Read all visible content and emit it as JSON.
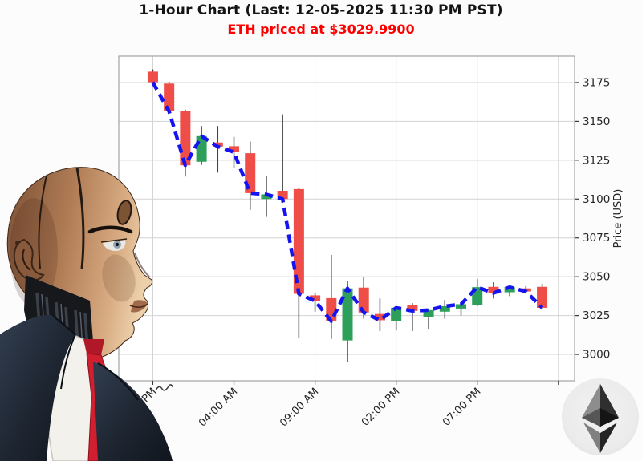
{
  "header": {
    "title": "1-Hour Chart (Last: 12-05-2025 11:30 PM PST)",
    "subtitle": "ETH priced at $3029.9900"
  },
  "chart_data": {
    "type": "candlestick",
    "title": "1-Hour Chart (Last: 12-05-2025 11:30 PM PST)",
    "subtitle": "ETH priced at $3029.9900",
    "ylabel": "Price (USD)",
    "grid": true,
    "legend_position": "none",
    "ylim": [
      2983,
      3192
    ],
    "xlim": [
      -2.1,
      26.0
    ],
    "y_ticks": [
      3000,
      3025,
      3050,
      3075,
      3100,
      3125,
      3150,
      3175
    ],
    "x_ticks": [
      {
        "index": 0,
        "label": "11:00 PM"
      },
      {
        "index": 5,
        "label": "04:00 AM"
      },
      {
        "index": 10,
        "label": "09:00 AM"
      },
      {
        "index": 15,
        "label": "02:00 PM"
      },
      {
        "index": 20,
        "label": "07:00 PM"
      }
    ],
    "extra_unlabeled_gridline_index": 25,
    "candles": [
      {
        "t": "11:00 PM",
        "o": 3182.0,
        "h": 3183.5,
        "l": 3173.5,
        "c": 3175.2
      },
      {
        "t": "12:00 AM",
        "o": 3174.3,
        "h": 3175.5,
        "l": 3155.5,
        "c": 3156.4
      },
      {
        "t": "01:00 AM",
        "o": 3156.4,
        "h": 3157.5,
        "l": 3114.5,
        "c": 3121.7
      },
      {
        "t": "02:00 AM",
        "o": 3124.0,
        "h": 3147.0,
        "l": 3122.0,
        "c": 3140.5
      },
      {
        "t": "03:00 AM",
        "o": 3136.4,
        "h": 3147.0,
        "l": 3117.0,
        "c": 3133.8
      },
      {
        "t": "04:00 AM",
        "o": 3134.0,
        "h": 3140.0,
        "l": 3120.0,
        "c": 3130.2
      },
      {
        "t": "05:00 AM",
        "o": 3129.5,
        "h": 3137.0,
        "l": 3093.0,
        "c": 3103.8
      },
      {
        "t": "06:00 AM",
        "o": 3100.0,
        "h": 3115.0,
        "l": 3088.5,
        "c": 3103.0
      },
      {
        "t": "07:00 AM",
        "o": 3105.3,
        "h": 3154.5,
        "l": 3097.5,
        "c": 3100.0
      },
      {
        "t": "08:00 AM",
        "o": 3106.4,
        "h": 3107.0,
        "l": 3010.5,
        "c": 3039.0
      },
      {
        "t": "09:00 AM",
        "o": 3038.0,
        "h": 3039.5,
        "l": 3027.5,
        "c": 3034.4
      },
      {
        "t": "10:00 AM",
        "o": 3036.2,
        "h": 3064.0,
        "l": 3010.0,
        "c": 3021.4
      },
      {
        "t": "11:00 AM",
        "o": 3009.0,
        "h": 3047.0,
        "l": 2995.0,
        "c": 3042.5
      },
      {
        "t": "12:00 PM",
        "o": 3043.0,
        "h": 3050.0,
        "l": 3023.0,
        "c": 3027.0
      },
      {
        "t": "01:00 PM",
        "o": 3026.0,
        "h": 3036.0,
        "l": 3015.0,
        "c": 3022.0
      },
      {
        "t": "02:00 PM",
        "o": 3021.5,
        "h": 3031.0,
        "l": 3016.0,
        "c": 3030.0
      },
      {
        "t": "03:00 PM",
        "o": 3031.5,
        "h": 3033.0,
        "l": 3015.0,
        "c": 3028.0
      },
      {
        "t": "04:00 PM",
        "o": 3024.0,
        "h": 3029.5,
        "l": 3016.5,
        "c": 3028.5
      },
      {
        "t": "05:00 PM",
        "o": 3027.5,
        "h": 3035.0,
        "l": 3023.0,
        "c": 3031.0
      },
      {
        "t": "06:00 PM",
        "o": 3029.5,
        "h": 3033.0,
        "l": 3025.0,
        "c": 3032.3
      },
      {
        "t": "07:00 PM",
        "o": 3032.0,
        "h": 3048.5,
        "l": 3031.0,
        "c": 3043.3
      },
      {
        "t": "08:00 PM",
        "o": 3043.5,
        "h": 3046.5,
        "l": 3036.0,
        "c": 3039.5
      },
      {
        "t": "09:00 PM",
        "o": 3040.0,
        "h": 3044.5,
        "l": 3037.5,
        "c": 3043.3
      },
      {
        "t": "10:00 PM",
        "o": 3042.5,
        "h": 3044.0,
        "l": 3039.5,
        "c": 3040.5
      },
      {
        "t": "11:00 PM",
        "o": 3043.5,
        "h": 3045.5,
        "l": 3029.0,
        "c": 3029.99
      }
    ],
    "overlay": {
      "name": "close-price-line",
      "style": "dashed",
      "color": "#1414f0"
    },
    "colors": {
      "up": "#2ca05a",
      "down": "#ef4d47",
      "wick": "#454545",
      "grid": "#d2d2d2",
      "axis_border": "#a3a3a3",
      "tick_text": "#262626"
    }
  },
  "icons": {
    "eth_logo": "ethereum-logo",
    "robot": "robot-analyst-image"
  }
}
